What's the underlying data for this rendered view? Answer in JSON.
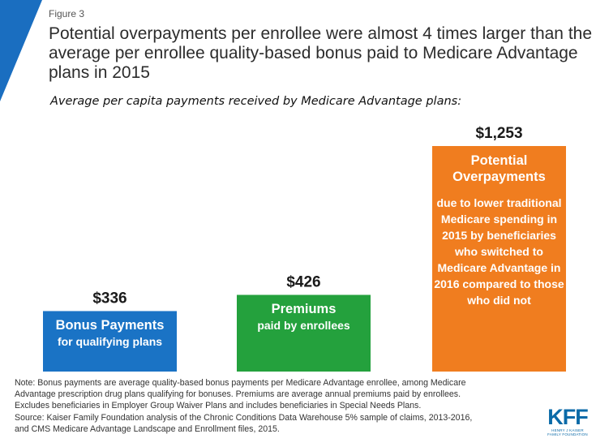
{
  "figure_label": "Figure 3",
  "title": "Potential overpayments per enrollee were almost 4 times larger than the average per enrollee quality-based bonus paid to Medicare Advantage plans in 2015",
  "subtitle": "Average per capita payments received by Medicare Advantage plans:",
  "chart_data": {
    "type": "bar",
    "categories": [
      "Bonus Payments",
      "Premiums",
      "Potential Overpayments"
    ],
    "values": [
      336,
      426,
      1253
    ],
    "value_labels": [
      "$336",
      "$426",
      "$1,253"
    ],
    "ylim": [
      0,
      1253
    ],
    "grid": false,
    "colors": [
      "#1a73c5",
      "#24a13d",
      "#f07d1f"
    ],
    "title": "",
    "xlabel": "",
    "ylabel": ""
  },
  "bars": [
    {
      "head": "Bonus Payments",
      "sub": "for qualifying  plans"
    },
    {
      "head": "Premiums",
      "sub": "paid by enrollees"
    },
    {
      "head": "Potential Overpayments",
      "sub": "due to lower traditional Medicare spending in 2015 by beneficiaries who switched to Medicare Advantage in 2016 compared to those who did not"
    }
  ],
  "notes": [
    "Note: Bonus payments are average quality-based bonus payments per Medicare Advantage enrollee, among Medicare",
    "Advantage prescription drug plans qualifying for bonuses. Premiums are average annual premiums paid by enrollees.",
    "Excludes beneficiaries in Employer Group Waiver Plans and includes beneficiaries in Special Needs Plans.",
    "Source: Kaiser Family Foundation analysis of the Chronic Conditions Data Warehouse 5% sample of claims, 2013-2016,",
    "and CMS Medicare Advantage Landscape and Enrollment files, 2015."
  ],
  "logo": {
    "mark": "KFF",
    "tagline_1": "HENRY J KAISER",
    "tagline_2": "FAMILY FOUNDATION"
  },
  "accent_color": "#1a73c5"
}
